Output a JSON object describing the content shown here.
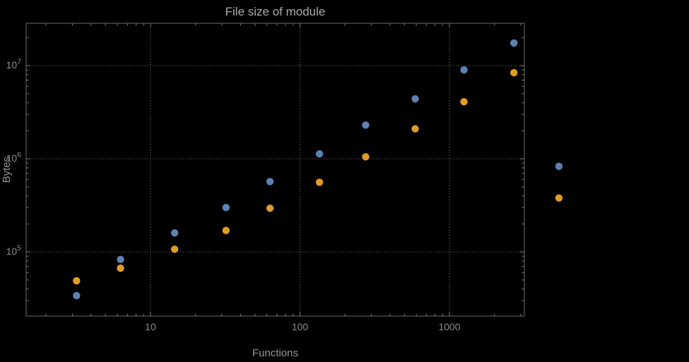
{
  "page": {
    "background": "#000000"
  },
  "chart_data": {
    "type": "scatter",
    "title": "File size of module",
    "xlabel": "Functions",
    "ylabel": "Bytes",
    "xscale": "log",
    "yscale": "log",
    "xlog_range": [
      0.168,
      3.501
    ],
    "ylog_range": [
      4.311,
      7.455
    ],
    "grid": {
      "x": [
        10,
        100,
        1000
      ],
      "y": [
        100000,
        1000000,
        10000000
      ],
      "style": "dotted"
    },
    "x_ticks": [
      {
        "value": 10,
        "label": "10"
      },
      {
        "value": 100,
        "label": "100"
      },
      {
        "value": 1000,
        "label": "1000"
      }
    ],
    "y_ticks": [
      {
        "value": 100000,
        "mantissa": "10",
        "exponent": "5"
      },
      {
        "value": 1000000,
        "mantissa": "10",
        "exponent": "6"
      },
      {
        "value": 10000000,
        "mantissa": "10",
        "exponent": "7"
      }
    ],
    "legend": "none",
    "series": [
      {
        "name": "series-1-blue",
        "color": "#5E81B5",
        "points": [
          [
            3.2,
            34000
          ],
          [
            6.3,
            83000
          ],
          [
            14.5,
            160000
          ],
          [
            32,
            300000
          ],
          [
            63,
            570000
          ],
          [
            135,
            1130000
          ],
          [
            275,
            2300000
          ],
          [
            590,
            4400000
          ],
          [
            1250,
            9000000
          ],
          [
            2700,
            17500000
          ],
          [
            5400,
            830000
          ]
        ]
      },
      {
        "name": "series-2-orange",
        "color": "#E19C24",
        "points": [
          [
            3.2,
            49000
          ],
          [
            6.3,
            67000
          ],
          [
            14.5,
            107000
          ],
          [
            32,
            170000
          ],
          [
            63,
            295000
          ],
          [
            135,
            560000
          ],
          [
            275,
            1050000
          ],
          [
            590,
            2100000
          ],
          [
            1250,
            4100000
          ],
          [
            2700,
            8400000
          ],
          [
            5400,
            380000
          ]
        ]
      }
    ],
    "colors": {
      "background": "#000000",
      "frame": "#6a6a6a",
      "grid": "#545454",
      "tick": "#7a7a7a",
      "tick_label": "#8c8c8c",
      "axis_label": "#949494",
      "title": "#ababab"
    }
  }
}
